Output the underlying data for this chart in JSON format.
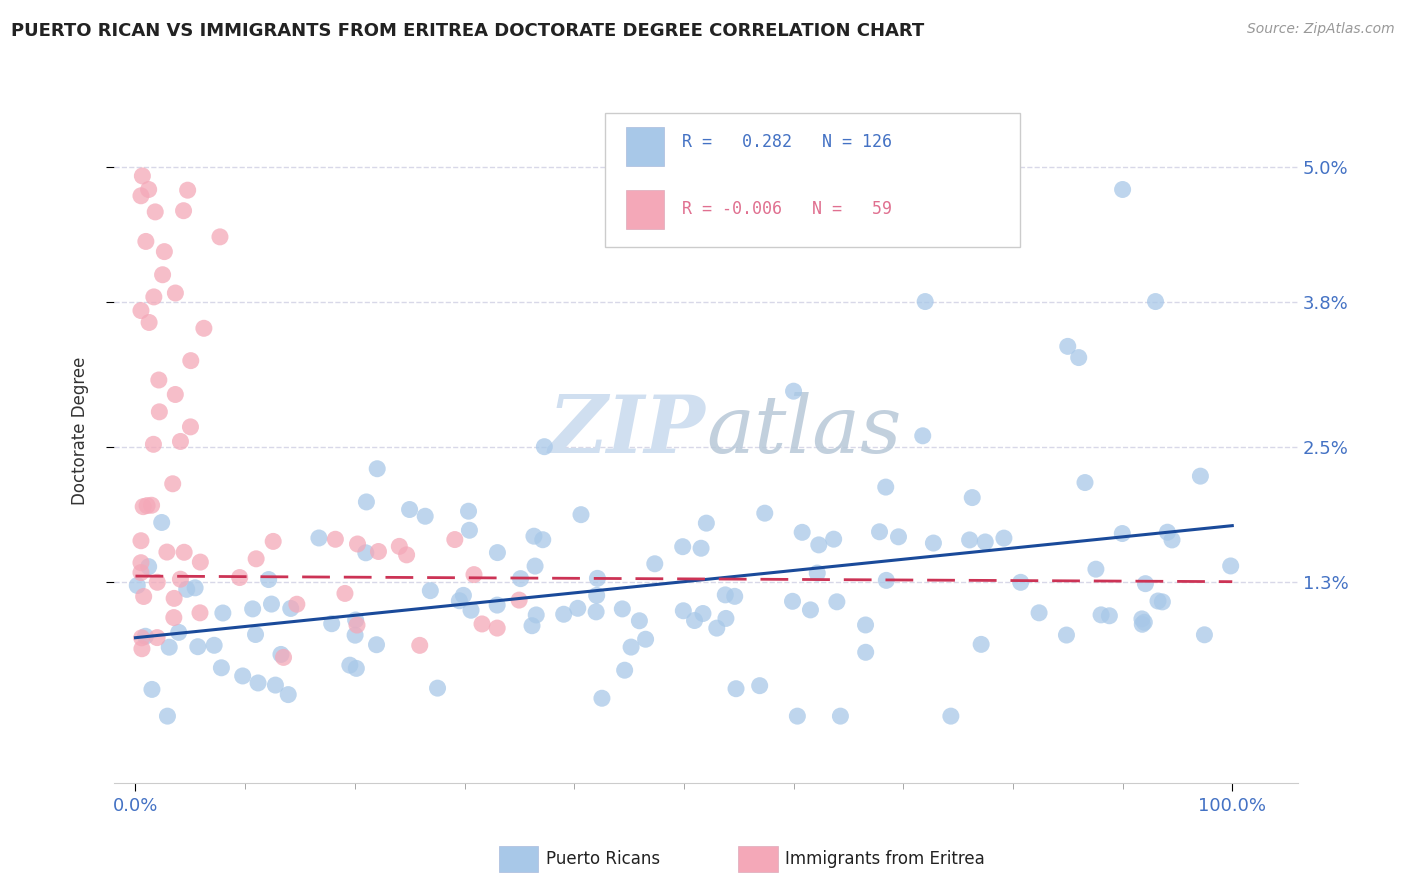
{
  "title": "PUERTO RICAN VS IMMIGRANTS FROM ERITREA DOCTORATE DEGREE CORRELATION CHART",
  "source": "Source: ZipAtlas.com",
  "ylabel": "Doctorate Degree",
  "color_blue": "#a8c8e8",
  "color_pink": "#f4a8b8",
  "color_blue_dark": "#4472c4",
  "color_pink_dark": "#e07090",
  "color_trendline_blue": "#1a4a9a",
  "color_trendline_pink": "#cc3355",
  "watermark_color": "#d0dff0",
  "grid_color": "#d8d8e8",
  "background_color": "#ffffff",
  "ytick_vals": [
    0.013,
    0.025,
    0.038,
    0.05
  ],
  "ytick_labels": [
    "1.3%",
    "2.5%",
    "3.8%",
    "5.0%"
  ],
  "xlim": [
    -0.02,
    1.06
  ],
  "ylim": [
    -0.005,
    0.058
  ]
}
